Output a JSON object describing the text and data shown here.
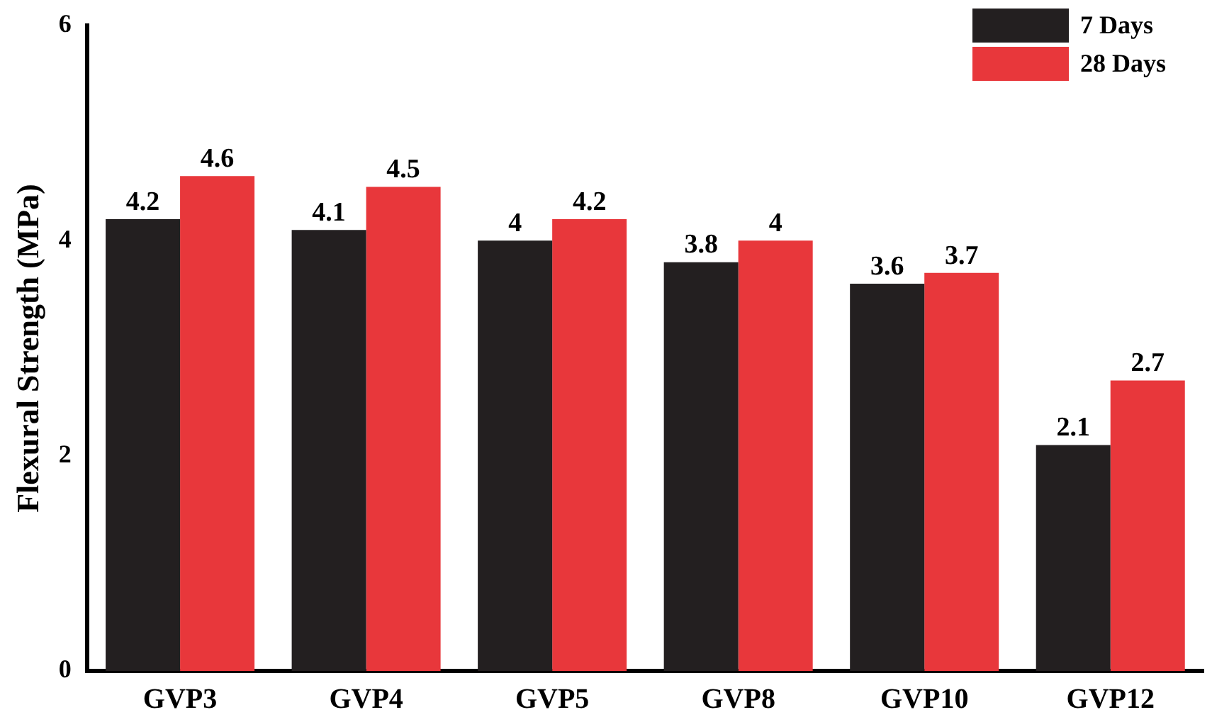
{
  "chart_data": {
    "type": "bar",
    "ylabel": "Flexural Strength (MPa)",
    "categories": [
      "GVP3",
      "GVP4",
      "GVP5",
      "GVP8",
      "GVP10",
      "GVP12"
    ],
    "series": [
      {
        "name": "7 Days",
        "color": "#231f20",
        "values": [
          4.2,
          4.1,
          4,
          3.8,
          3.6,
          2.1
        ]
      },
      {
        "name": "28 Days",
        "color": "#e8373b",
        "values": [
          4.6,
          4.5,
          4.2,
          4,
          3.7,
          2.7
        ]
      }
    ],
    "ylim": [
      0,
      6
    ],
    "yticks": [
      0,
      2,
      4,
      6
    ],
    "grid": false,
    "legend": "top right",
    "data_labels": true
  }
}
